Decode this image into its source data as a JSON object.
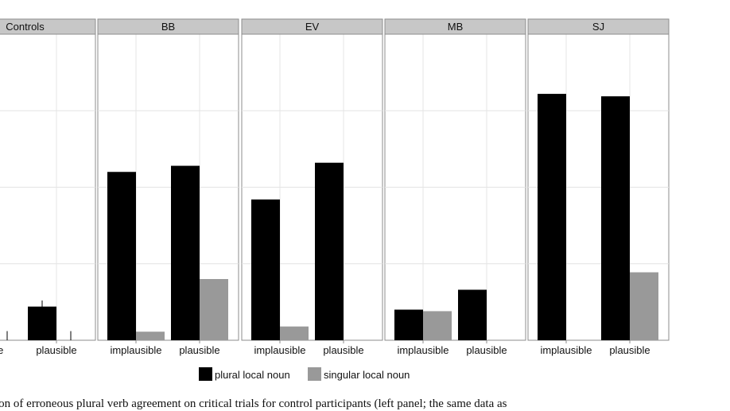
{
  "chart_data": {
    "type": "bar",
    "facets": [
      "Controls",
      "BB",
      "EV",
      "MB",
      "SJ"
    ],
    "categories": [
      "implausible",
      "plausible"
    ],
    "visible_category_labels": {
      "Controls": [
        "sible",
        "plausible"
      ],
      "BB": [
        "implausible",
        "plausible"
      ],
      "EV": [
        "implausible",
        "plausible"
      ],
      "MB": [
        "implausible",
        "plausible"
      ],
      "SJ": [
        "implausible",
        "plausible"
      ]
    },
    "series": [
      {
        "name": "plural local noun",
        "color": "#000000",
        "values": {
          "Controls": [
            0.0,
            0.11
          ],
          "BB": [
            0.55,
            0.57
          ],
          "EV": [
            0.46,
            0.58
          ],
          "MB": [
            0.1,
            0.165
          ],
          "SJ": [
            0.805,
            0.797
          ]
        }
      },
      {
        "name": "singular local noun",
        "color": "#999999",
        "values": {
          "Controls": [
            0.0,
            0.0
          ],
          "BB": [
            0.028,
            0.2
          ],
          "EV": [
            0.045,
            0.0
          ],
          "MB": [
            0.095,
            0.0
          ],
          "SJ": [
            0.0,
            0.222
          ]
        }
      }
    ],
    "error_bars": {
      "Controls": {
        "plural local noun": [
          [
            0.0,
            0.03
          ],
          [
            0.09,
            0.13
          ]
        ],
        "singular local noun": [
          [
            0.0,
            0.03
          ],
          [
            0.0,
            0.03
          ]
        ]
      }
    },
    "ylim": [
      0,
      1.0
    ],
    "grid": true,
    "legend_position": "bottom"
  },
  "caption": "ion of erroneous plural verb agreement on critical trials for control participants (left panel; the same data as"
}
